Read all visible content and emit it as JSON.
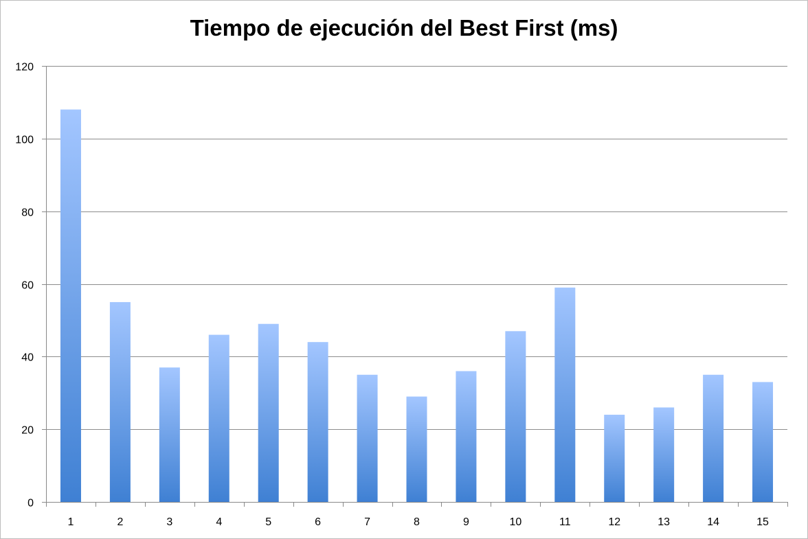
{
  "chart_data": {
    "type": "bar",
    "title": "Tiempo de ejecución del Best First (ms)",
    "xlabel": "",
    "ylabel": "",
    "categories": [
      "1",
      "2",
      "3",
      "4",
      "5",
      "6",
      "7",
      "8",
      "9",
      "10",
      "11",
      "12",
      "13",
      "14",
      "15"
    ],
    "values": [
      108,
      55,
      37,
      46,
      49,
      44,
      35,
      29,
      36,
      47,
      59,
      24,
      26,
      35,
      33
    ],
    "ylim": [
      0,
      120
    ],
    "yticks": [
      "0",
      "20",
      "40",
      "60",
      "80",
      "100",
      "120"
    ],
    "grid": true,
    "legend": "none",
    "colors": {
      "bar_top": "#a3c6ff",
      "bar_bottom": "#3f80d3",
      "grid": "#8c8c8c",
      "axis": "#888888"
    }
  }
}
